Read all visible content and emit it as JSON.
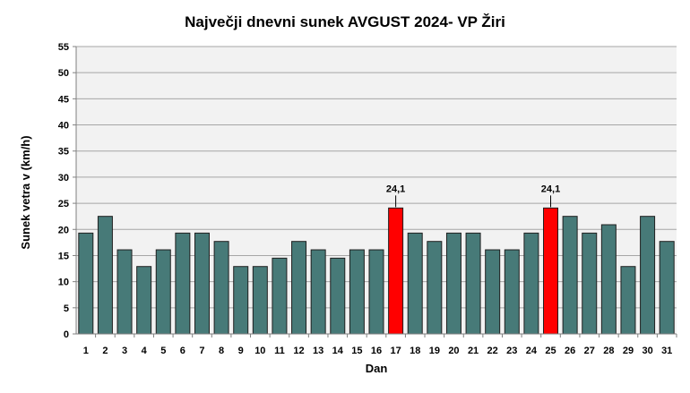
{
  "chart_data": {
    "type": "bar",
    "title": "Največji dnevni sunek AVGUST 2024- VP Žiri",
    "xlabel": "Dan",
    "ylabel": "Sunek vetra v (km/h)",
    "ylim": [
      0,
      55
    ],
    "yticks": [
      0,
      5,
      10,
      15,
      20,
      25,
      30,
      35,
      40,
      45,
      50,
      55
    ],
    "grid": true,
    "categories": [
      "1",
      "2",
      "3",
      "4",
      "5",
      "6",
      "7",
      "8",
      "9",
      "10",
      "11",
      "12",
      "13",
      "14",
      "15",
      "16",
      "17",
      "18",
      "19",
      "20",
      "21",
      "22",
      "23",
      "24",
      "25",
      "26",
      "27",
      "28",
      "29",
      "30",
      "31"
    ],
    "values": [
      19.3,
      22.5,
      16.1,
      12.9,
      16.1,
      19.3,
      19.3,
      17.7,
      12.9,
      12.9,
      14.5,
      17.7,
      16.1,
      14.5,
      16.1,
      16.1,
      24.1,
      19.3,
      17.7,
      19.3,
      19.3,
      16.1,
      16.1,
      19.3,
      24.1,
      22.5,
      19.3,
      20.9,
      12.9,
      22.5,
      17.7
    ],
    "highlight_days": [
      "17",
      "25"
    ],
    "data_labels": [
      {
        "day": "17",
        "text": "24,1"
      },
      {
        "day": "25",
        "text": "24,1"
      }
    ],
    "colors": {
      "bar": "#477a78",
      "highlight": "#ff0000",
      "plot_bg": "#f2f2f2",
      "grid": "#a6a6a6"
    }
  }
}
